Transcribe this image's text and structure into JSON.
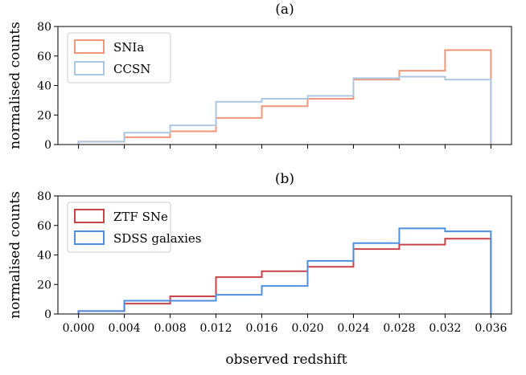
{
  "figure": {
    "xlabel": "observed redshift"
  },
  "chart_data": [
    {
      "type": "histogram",
      "title": "(a)",
      "xlabel": "",
      "ylabel": "normalised counts",
      "xlim": [
        -0.0018,
        0.0378
      ],
      "ylim": [
        0,
        80
      ],
      "yticks": [
        0,
        20,
        40,
        60,
        80
      ],
      "show_x_tick_labels": false,
      "grid": false,
      "legend_position": "top-left",
      "bin_edges": [
        0.0,
        0.004,
        0.008,
        0.012,
        0.016,
        0.02,
        0.024,
        0.028,
        0.032,
        0.036
      ],
      "series": [
        {
          "name": "SNIa",
          "color": "#f0967a",
          "values": [
            2,
            5,
            9,
            18,
            26,
            31,
            44,
            50,
            64
          ]
        },
        {
          "name": "CCSN",
          "color": "#aec7e0",
          "values": [
            2,
            8,
            13,
            29,
            31,
            33,
            45,
            46,
            44
          ]
        }
      ]
    },
    {
      "type": "histogram",
      "title": "(b)",
      "xlabel": "observed redshift",
      "ylabel": "normalised counts",
      "xlim": [
        -0.0018,
        0.0378
      ],
      "ylim": [
        0,
        80
      ],
      "yticks": [
        0,
        20,
        40,
        60,
        80
      ],
      "xticks": [
        "0.000",
        "0.004",
        "0.008",
        "0.012",
        "0.016",
        "0.020",
        "0.024",
        "0.028",
        "0.032",
        "0.036"
      ],
      "show_x_tick_labels": true,
      "grid": false,
      "legend_position": "top-left",
      "bin_edges": [
        0.0,
        0.004,
        0.008,
        0.012,
        0.016,
        0.02,
        0.024,
        0.028,
        0.032,
        0.036
      ],
      "series": [
        {
          "name": "ZTF SNe",
          "color": "#c9444a",
          "values": [
            2,
            7,
            12,
            25,
            29,
            32,
            44,
            47,
            51
          ]
        },
        {
          "name": "SDSS galaxies",
          "color": "#4f8fe0",
          "values": [
            2,
            9,
            9,
            13,
            19,
            36,
            48,
            58,
            56
          ]
        }
      ]
    }
  ]
}
